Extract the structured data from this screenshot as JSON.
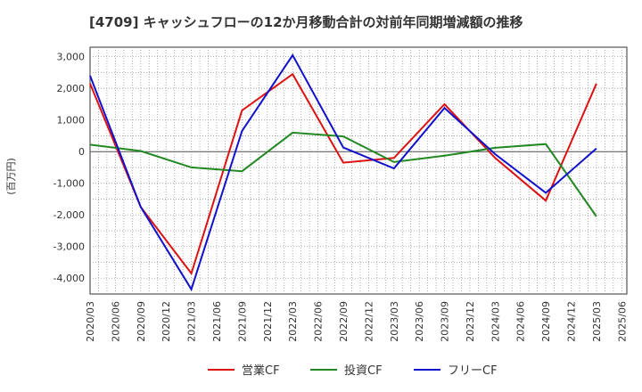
{
  "chart_data": {
    "type": "line",
    "title": "[4709]  キャッシュフローの12か月移動合計の対前年同期増減額の推移",
    "ylabel": "(百万円)",
    "xlabel": "",
    "ylim": [
      -4500,
      3300
    ],
    "yticks": [
      3000,
      2000,
      1000,
      0,
      -1000,
      -2000,
      -3000,
      -4000
    ],
    "ytick_labels": [
      "3,000",
      "2,000",
      "1,000",
      "0",
      "-1,000",
      "-2,000",
      "-3,000",
      "-4,000"
    ],
    "x_categories": [
      "2020/03",
      "2020/06",
      "2020/09",
      "2020/12",
      "2021/03",
      "2021/06",
      "2021/09",
      "2021/12",
      "2022/03",
      "2022/06",
      "2022/09",
      "2022/12",
      "2023/03",
      "2023/06",
      "2023/09",
      "2023/12",
      "2024/03",
      "2024/06",
      "2024/09",
      "2024/12",
      "2025/03",
      "2025/06"
    ],
    "grid": true,
    "legend_position": "bottom",
    "series": [
      {
        "name": "営業CF",
        "color": "#dd1111",
        "points": [
          {
            "x": "2020/03",
            "y": 2150
          },
          {
            "x": "2020/09",
            "y": -1750
          },
          {
            "x": "2021/03",
            "y": -3850
          },
          {
            "x": "2021/09",
            "y": 1300
          },
          {
            "x": "2022/03",
            "y": 2450
          },
          {
            "x": "2022/09",
            "y": -350
          },
          {
            "x": "2023/03",
            "y": -200
          },
          {
            "x": "2023/09",
            "y": 1500
          },
          {
            "x": "2024/03",
            "y": -200
          },
          {
            "x": "2024/09",
            "y": -1550
          },
          {
            "x": "2025/03",
            "y": 2150
          }
        ]
      },
      {
        "name": "投資CF",
        "color": "#228822",
        "points": [
          {
            "x": "2020/03",
            "y": 220
          },
          {
            "x": "2020/09",
            "y": 20
          },
          {
            "x": "2021/03",
            "y": -500
          },
          {
            "x": "2021/09",
            "y": -620
          },
          {
            "x": "2022/03",
            "y": 600
          },
          {
            "x": "2022/09",
            "y": 480
          },
          {
            "x": "2023/03",
            "y": -330
          },
          {
            "x": "2023/09",
            "y": -130
          },
          {
            "x": "2024/03",
            "y": 120
          },
          {
            "x": "2024/09",
            "y": 240
          },
          {
            "x": "2025/03",
            "y": -2050
          }
        ]
      },
      {
        "name": "フリーCF",
        "color": "#1111cc",
        "points": [
          {
            "x": "2020/03",
            "y": 2400
          },
          {
            "x": "2020/09",
            "y": -1750
          },
          {
            "x": "2021/03",
            "y": -4350
          },
          {
            "x": "2021/09",
            "y": 650
          },
          {
            "x": "2022/03",
            "y": 3050
          },
          {
            "x": "2022/09",
            "y": 130
          },
          {
            "x": "2023/03",
            "y": -530
          },
          {
            "x": "2023/09",
            "y": 1380
          },
          {
            "x": "2024/03",
            "y": -80
          },
          {
            "x": "2024/09",
            "y": -1300
          },
          {
            "x": "2025/03",
            "y": 100
          }
        ]
      }
    ]
  }
}
